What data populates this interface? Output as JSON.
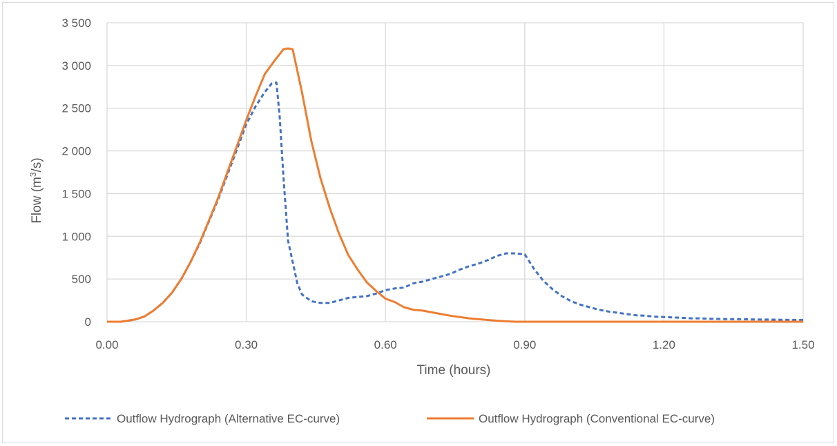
{
  "chart_data": {
    "type": "line",
    "xlabel": "Time (hours)",
    "ylabel_main": "Flow (m",
    "ylabel_sup": "3",
    "ylabel_tail": "/s)",
    "xlim": [
      0,
      1.5
    ],
    "ylim": [
      0,
      3500
    ],
    "x_ticks": [
      0.0,
      0.3,
      0.6,
      0.9,
      1.2,
      1.5
    ],
    "x_tick_labels": [
      "0.00",
      "0.30",
      "0.60",
      "0.90",
      "1.20",
      "1.50"
    ],
    "y_ticks": [
      0,
      500,
      1000,
      1500,
      2000,
      2500,
      3000,
      3500
    ],
    "y_tick_labels": [
      "0",
      "500",
      "1 000",
      "1 500",
      "2 000",
      "2 500",
      "3 000",
      "3 500"
    ],
    "grid": true,
    "legend_position": "bottom",
    "series": [
      {
        "name": "Outflow Hydrograph (Alternative EC-curve)",
        "color": "#4472c4",
        "dash": "dashed",
        "x": [
          0.0,
          0.03,
          0.06,
          0.08,
          0.1,
          0.12,
          0.14,
          0.16,
          0.18,
          0.2,
          0.22,
          0.24,
          0.26,
          0.28,
          0.3,
          0.32,
          0.34,
          0.355,
          0.365,
          0.372,
          0.38,
          0.39,
          0.4,
          0.41,
          0.42,
          0.44,
          0.46,
          0.48,
          0.5,
          0.52,
          0.54,
          0.56,
          0.58,
          0.6,
          0.62,
          0.64,
          0.66,
          0.68,
          0.7,
          0.72,
          0.74,
          0.76,
          0.78,
          0.8,
          0.82,
          0.84,
          0.86,
          0.88,
          0.9,
          0.92,
          0.94,
          0.96,
          0.98,
          1.0,
          1.02,
          1.04,
          1.06,
          1.08,
          1.1,
          1.12,
          1.14,
          1.16,
          1.18,
          1.2,
          1.22,
          1.24,
          1.26,
          1.28,
          1.3,
          1.32,
          1.34,
          1.36,
          1.38,
          1.4,
          1.42,
          1.44,
          1.46,
          1.48,
          1.5
        ],
        "y": [
          0,
          0,
          25,
          60,
          130,
          220,
          340,
          500,
          700,
          920,
          1180,
          1440,
          1730,
          2020,
          2310,
          2520,
          2690,
          2790,
          2800,
          2400,
          1700,
          950,
          700,
          450,
          320,
          240,
          220,
          220,
          250,
          280,
          290,
          300,
          330,
          370,
          390,
          400,
          450,
          470,
          500,
          530,
          560,
          610,
          650,
          680,
          720,
          770,
          800,
          800,
          790,
          620,
          480,
          380,
          300,
          240,
          200,
          170,
          140,
          120,
          105,
          90,
          75,
          70,
          60,
          55,
          50,
          45,
          40,
          40,
          35,
          33,
          30,
          30,
          28,
          26,
          25,
          24,
          22,
          21,
          20
        ]
      },
      {
        "name": "Outflow Hydrograph (Conventional EC-curve)",
        "color": "#ed7d31",
        "dash": "solid",
        "x": [
          0.0,
          0.03,
          0.06,
          0.08,
          0.1,
          0.12,
          0.14,
          0.16,
          0.18,
          0.2,
          0.22,
          0.24,
          0.26,
          0.28,
          0.3,
          0.32,
          0.34,
          0.36,
          0.38,
          0.39,
          0.4,
          0.42,
          0.44,
          0.46,
          0.48,
          0.5,
          0.52,
          0.54,
          0.56,
          0.58,
          0.6,
          0.62,
          0.64,
          0.66,
          0.68,
          0.7,
          0.72,
          0.74,
          0.76,
          0.78,
          0.8,
          0.82,
          0.84,
          0.86,
          0.88,
          0.9,
          0.95,
          1.0,
          1.1,
          1.2,
          1.3,
          1.4,
          1.5
        ],
        "y": [
          0,
          0,
          25,
          60,
          130,
          220,
          340,
          500,
          700,
          930,
          1190,
          1460,
          1760,
          2060,
          2360,
          2640,
          2900,
          3050,
          3190,
          3200,
          3190,
          2690,
          2120,
          1680,
          1330,
          1030,
          780,
          610,
          460,
          360,
          270,
          230,
          170,
          140,
          130,
          110,
          90,
          70,
          55,
          40,
          30,
          20,
          12,
          5,
          0,
          0,
          0,
          0,
          0,
          0,
          0,
          0,
          0
        ]
      }
    ]
  }
}
